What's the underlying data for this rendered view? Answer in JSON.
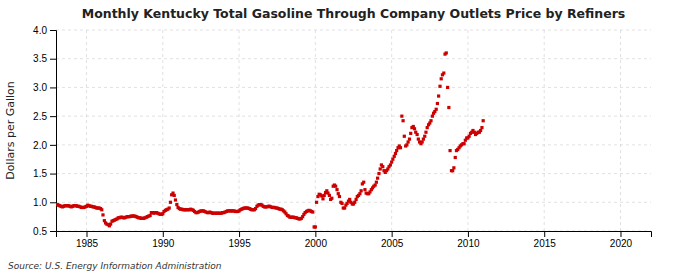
{
  "chart_data": {
    "type": "scatter",
    "title": "Monthly Kentucky Total Gasoline Through Company Outlets Price by Refiners",
    "ylabel": "Dollars per Gallon",
    "source": "Source: U.S. Energy Information Administration",
    "color": "#cc0000",
    "marker": "square",
    "grid": true,
    "xlim": [
      1983.0,
      2022.0
    ],
    "ylim": [
      0.5,
      4.0
    ],
    "xticks": [
      1985,
      1990,
      1995,
      2000,
      2005,
      2010,
      2015,
      2020
    ],
    "yticks": [
      0.5,
      {
        "value": 1.0,
        "label": "1.0"
      },
      1.5,
      {
        "value": 2.0,
        "label": "2.0"
      },
      2.5,
      {
        "value": 3.0,
        "label": "3.0"
      },
      3.5,
      {
        "value": 4.0,
        "label": "4.0"
      }
    ],
    "x": [
      1983.08,
      1983.17,
      1983.25,
      1983.33,
      1983.42,
      1983.5,
      1983.58,
      1983.67,
      1983.75,
      1983.83,
      1983.92,
      1984.0,
      1984.08,
      1984.17,
      1984.25,
      1984.33,
      1984.42,
      1984.5,
      1984.58,
      1984.67,
      1984.75,
      1984.83,
      1984.92,
      1985.0,
      1985.08,
      1985.17,
      1985.25,
      1985.33,
      1985.42,
      1985.5,
      1985.58,
      1985.67,
      1985.75,
      1985.83,
      1985.92,
      1986.0,
      1986.08,
      1986.17,
      1986.25,
      1986.33,
      1986.42,
      1986.5,
      1986.58,
      1986.67,
      1986.75,
      1986.83,
      1986.92,
      1987.0,
      1987.08,
      1987.17,
      1987.25,
      1987.33,
      1987.42,
      1987.5,
      1987.58,
      1987.67,
      1987.75,
      1987.83,
      1987.92,
      1988.0,
      1988.08,
      1988.17,
      1988.25,
      1988.33,
      1988.42,
      1988.5,
      1988.58,
      1988.67,
      1988.75,
      1988.83,
      1988.92,
      1989.0,
      1989.08,
      1989.17,
      1989.25,
      1989.33,
      1989.42,
      1989.5,
      1989.58,
      1989.67,
      1989.75,
      1989.83,
      1989.92,
      1990.0,
      1990.08,
      1990.17,
      1990.25,
      1990.33,
      1990.42,
      1990.5,
      1990.58,
      1990.67,
      1990.75,
      1990.83,
      1990.92,
      1991.0,
      1991.08,
      1991.17,
      1991.25,
      1991.33,
      1991.42,
      1991.5,
      1991.58,
      1991.67,
      1991.75,
      1991.83,
      1991.92,
      1992.0,
      1992.08,
      1992.17,
      1992.25,
      1992.33,
      1992.42,
      1992.5,
      1992.58,
      1992.67,
      1992.75,
      1992.83,
      1992.92,
      1993.0,
      1993.08,
      1993.17,
      1993.25,
      1993.33,
      1993.42,
      1993.5,
      1993.58,
      1993.67,
      1993.75,
      1993.83,
      1993.92,
      1994.0,
      1994.08,
      1994.17,
      1994.25,
      1994.33,
      1994.42,
      1994.5,
      1994.58,
      1994.67,
      1994.75,
      1994.83,
      1994.92,
      1995.0,
      1995.08,
      1995.17,
      1995.25,
      1995.33,
      1995.42,
      1995.5,
      1995.58,
      1995.67,
      1995.75,
      1995.83,
      1995.92,
      1996.0,
      1996.08,
      1996.17,
      1996.25,
      1996.33,
      1996.42,
      1996.5,
      1996.58,
      1996.67,
      1996.75,
      1996.83,
      1996.92,
      1997.0,
      1997.08,
      1997.17,
      1997.25,
      1997.33,
      1997.42,
      1997.5,
      1997.58,
      1997.67,
      1997.75,
      1997.83,
      1997.92,
      1998.0,
      1998.08,
      1998.17,
      1998.25,
      1998.33,
      1998.42,
      1998.5,
      1998.58,
      1998.67,
      1998.75,
      1998.83,
      1998.92,
      1999.0,
      1999.08,
      1999.17,
      1999.25,
      1999.33,
      1999.42,
      1999.5,
      1999.58,
      1999.67,
      1999.75,
      1999.83,
      1999.92,
      2000.0,
      2000.08,
      2000.17,
      2000.25,
      2000.33,
      2000.42,
      2000.5,
      2000.58,
      2000.67,
      2000.75,
      2000.83,
      2000.92,
      2001.0,
      2001.08,
      2001.17,
      2001.25,
      2001.33,
      2001.42,
      2001.5,
      2001.58,
      2001.67,
      2001.75,
      2001.83,
      2001.92,
      2002.0,
      2002.08,
      2002.17,
      2002.25,
      2002.33,
      2002.42,
      2002.5,
      2002.58,
      2002.67,
      2002.75,
      2002.83,
      2002.92,
      2003.0,
      2003.08,
      2003.17,
      2003.25,
      2003.33,
      2003.42,
      2003.5,
      2003.58,
      2003.67,
      2003.75,
      2003.83,
      2003.92,
      2004.0,
      2004.08,
      2004.17,
      2004.25,
      2004.33,
      2004.42,
      2004.5,
      2004.58,
      2004.67,
      2004.75,
      2004.83,
      2004.92,
      2005.0,
      2005.08,
      2005.17,
      2005.25,
      2005.33,
      2005.42,
      2005.5,
      2005.58,
      2005.67,
      2005.75,
      2005.83,
      2005.92,
      2006.0,
      2006.08,
      2006.17,
      2006.25,
      2006.33,
      2006.42,
      2006.5,
      2006.58,
      2006.67,
      2006.75,
      2006.83,
      2006.92,
      2007.0,
      2007.08,
      2007.17,
      2007.25,
      2007.33,
      2007.42,
      2007.5,
      2007.58,
      2007.67,
      2007.75,
      2007.83,
      2007.92,
      2008.0,
      2008.08,
      2008.17,
      2008.25,
      2008.33,
      2008.42,
      2008.5,
      2008.58,
      2008.67,
      2008.75,
      2008.83,
      2008.92,
      2009.0,
      2009.08,
      2009.17,
      2009.25,
      2009.33,
      2009.42,
      2009.5,
      2009.58,
      2009.67,
      2009.75,
      2009.83,
      2009.92,
      2010.0,
      2010.08,
      2010.17,
      2010.25,
      2010.33,
      2010.42,
      2010.5,
      2010.58,
      2010.67,
      2010.75,
      2010.83,
      2010.92,
      2011.0
    ],
    "values": [
      0.96,
      0.95,
      0.94,
      0.93,
      0.92,
      0.93,
      0.94,
      0.94,
      0.94,
      0.94,
      0.93,
      0.92,
      0.93,
      0.94,
      0.94,
      0.94,
      0.93,
      0.93,
      0.92,
      0.91,
      0.91,
      0.91,
      0.92,
      0.93,
      0.95,
      0.94,
      0.93,
      0.93,
      0.92,
      0.92,
      0.91,
      0.9,
      0.9,
      0.9,
      0.89,
      0.87,
      0.78,
      0.68,
      0.64,
      0.62,
      0.61,
      0.59,
      0.62,
      0.67,
      0.68,
      0.69,
      0.7,
      0.71,
      0.73,
      0.73,
      0.74,
      0.74,
      0.73,
      0.73,
      0.74,
      0.75,
      0.75,
      0.75,
      0.76,
      0.76,
      0.76,
      0.76,
      0.75,
      0.74,
      0.73,
      0.73,
      0.72,
      0.72,
      0.72,
      0.73,
      0.74,
      0.75,
      0.76,
      0.77,
      0.82,
      0.82,
      0.81,
      0.82,
      0.82,
      0.81,
      0.8,
      0.79,
      0.79,
      0.8,
      0.84,
      0.86,
      0.87,
      0.88,
      0.9,
      1.0,
      1.13,
      1.16,
      1.12,
      1.04,
      0.96,
      0.91,
      0.89,
      0.88,
      0.88,
      0.87,
      0.87,
      0.87,
      0.87,
      0.87,
      0.87,
      0.88,
      0.87,
      0.86,
      0.84,
      0.82,
      0.82,
      0.83,
      0.84,
      0.85,
      0.85,
      0.85,
      0.84,
      0.83,
      0.82,
      0.82,
      0.83,
      0.82,
      0.81,
      0.81,
      0.81,
      0.81,
      0.81,
      0.81,
      0.81,
      0.81,
      0.82,
      0.82,
      0.83,
      0.84,
      0.85,
      0.85,
      0.85,
      0.85,
      0.85,
      0.85,
      0.84,
      0.84,
      0.84,
      0.85,
      0.87,
      0.88,
      0.89,
      0.9,
      0.9,
      0.9,
      0.9,
      0.89,
      0.88,
      0.87,
      0.87,
      0.87,
      0.89,
      0.93,
      0.95,
      0.96,
      0.96,
      0.95,
      0.93,
      0.92,
      0.92,
      0.92,
      0.93,
      0.93,
      0.92,
      0.91,
      0.91,
      0.91,
      0.9,
      0.9,
      0.89,
      0.88,
      0.88,
      0.87,
      0.85,
      0.83,
      0.8,
      0.77,
      0.76,
      0.74,
      0.74,
      0.74,
      0.74,
      0.73,
      0.73,
      0.72,
      0.71,
      0.71,
      0.72,
      0.75,
      0.79,
      0.82,
      0.84,
      0.85,
      0.86,
      0.85,
      0.84,
      0.83,
      0.57,
      0.57,
      1.0,
      1.1,
      1.14,
      1.13,
      1.11,
      1.06,
      1.12,
      1.17,
      1.2,
      1.16,
      1.12,
      1.05,
      1.07,
      1.28,
      1.3,
      1.28,
      1.22,
      1.15,
      1.1,
      1.0,
      0.98,
      0.9,
      0.9,
      0.95,
      0.98,
      1.02,
      1.05,
      1.0,
      0.97,
      0.97,
      1.0,
      1.05,
      1.1,
      1.12,
      1.15,
      1.2,
      1.32,
      1.35,
      1.22,
      1.16,
      1.15,
      1.15,
      1.18,
      1.22,
      1.25,
      1.28,
      1.3,
      1.35,
      1.42,
      1.5,
      1.58,
      1.65,
      1.62,
      1.55,
      1.52,
      1.55,
      1.58,
      1.62,
      1.65,
      1.7,
      1.75,
      1.8,
      1.85,
      1.9,
      1.95,
      1.98,
      1.95,
      2.5,
      2.42,
      2.15,
      1.98,
      2.0,
      2.05,
      2.1,
      2.2,
      2.3,
      2.32,
      2.28,
      2.22,
      2.18,
      2.1,
      2.05,
      2.02,
      2.05,
      2.1,
      2.15,
      2.22,
      2.3,
      2.35,
      2.38,
      2.42,
      2.5,
      2.55,
      2.58,
      2.62,
      2.72,
      2.85,
      3.02,
      3.15,
      3.22,
      3.25,
      3.58,
      3.6,
      3.0,
      2.65,
      1.9,
      1.55,
      1.55,
      1.6,
      1.78,
      1.9,
      1.92,
      1.95,
      1.98,
      2.0,
      2.02,
      2.02,
      2.08,
      2.12,
      2.12,
      2.15,
      2.2,
      2.22,
      2.25,
      2.22,
      2.18,
      2.2,
      2.22,
      2.22,
      2.25,
      2.3,
      2.42
    ]
  }
}
